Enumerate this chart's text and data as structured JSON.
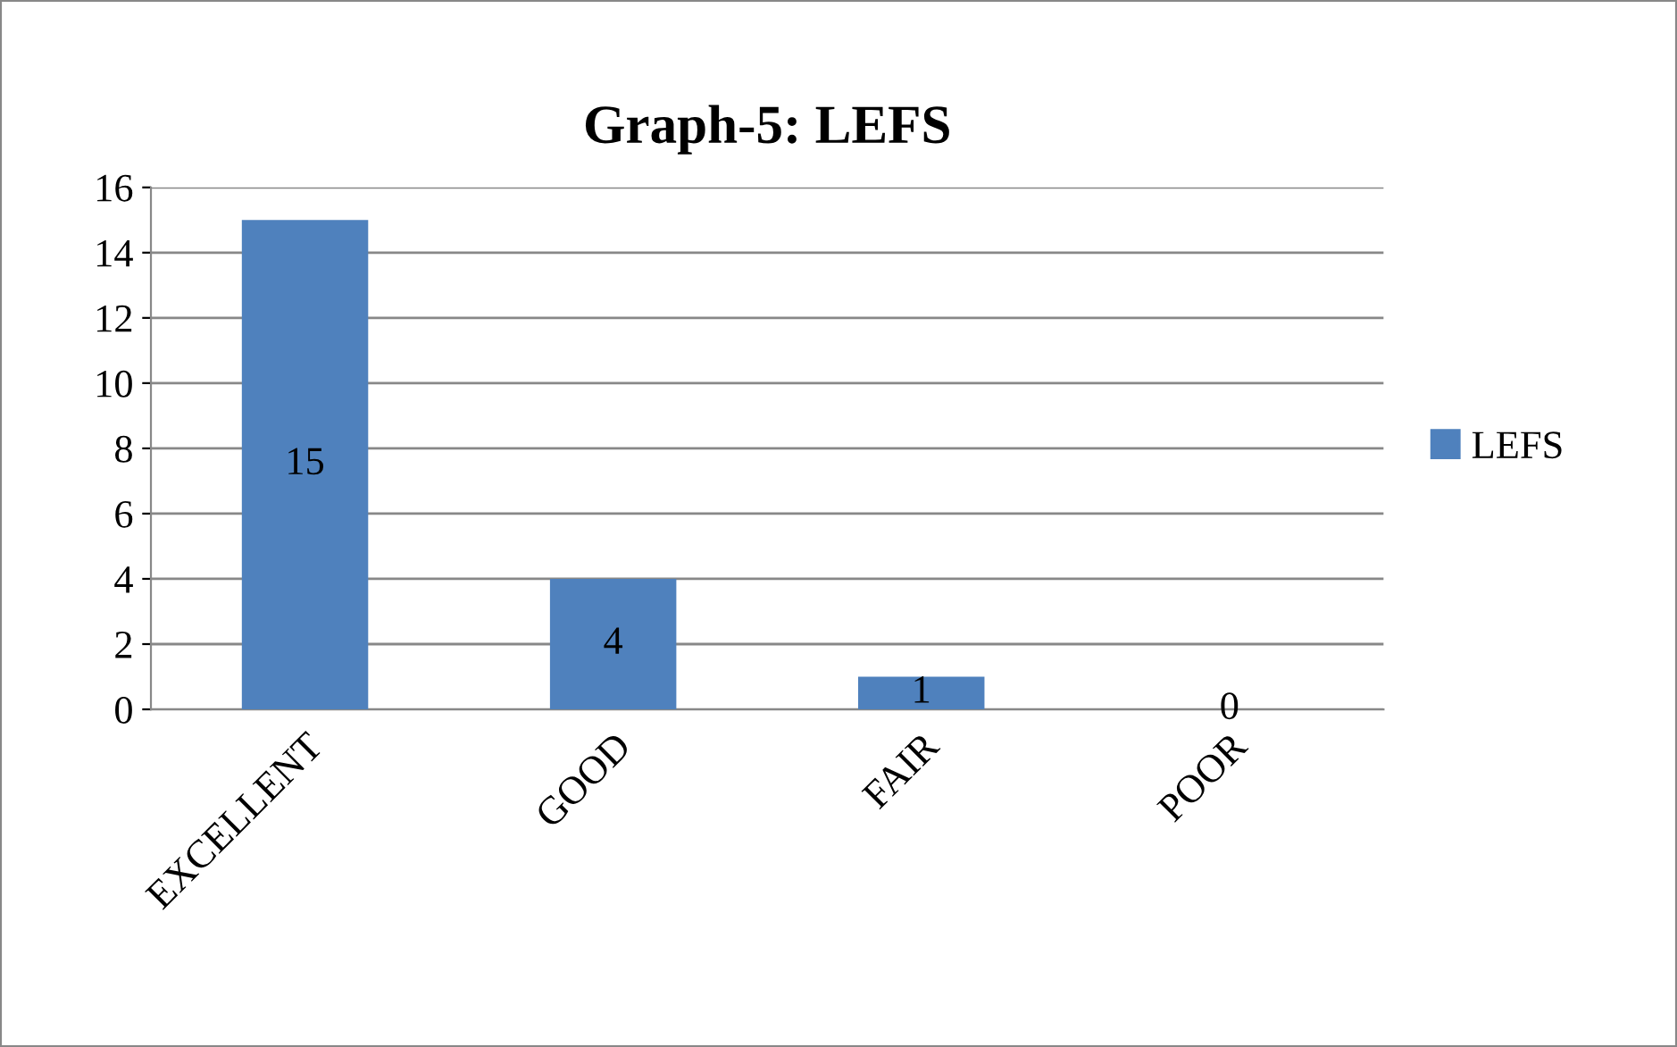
{
  "chart_data": {
    "type": "bar",
    "title": "Graph-5: LEFS",
    "categories": [
      "EXCELLENT",
      "GOOD",
      "FAIR",
      "POOR"
    ],
    "series": [
      {
        "name": "LEFS",
        "color": "#4f81bd",
        "values": [
          15,
          4,
          1,
          0
        ]
      }
    ],
    "ylim": [
      0,
      16
    ],
    "yticks": [
      0,
      2,
      4,
      6,
      8,
      10,
      12,
      14,
      16
    ],
    "grid": "y",
    "legend": "right",
    "data_labels": true
  }
}
